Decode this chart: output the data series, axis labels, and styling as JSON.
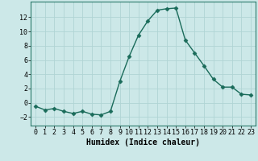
{
  "x": [
    0,
    1,
    2,
    3,
    4,
    5,
    6,
    7,
    8,
    9,
    10,
    11,
    12,
    13,
    14,
    15,
    16,
    17,
    18,
    19,
    20,
    21,
    22,
    23
  ],
  "y": [
    -0.5,
    -1.0,
    -0.8,
    -1.2,
    -1.5,
    -1.2,
    -1.6,
    -1.7,
    -1.2,
    3.0,
    6.5,
    9.5,
    11.5,
    13.0,
    13.2,
    13.3,
    8.8,
    7.0,
    5.2,
    3.3,
    2.2,
    2.2,
    1.2,
    1.1
  ],
  "line_color": "#1a6b5a",
  "marker": "D",
  "marker_size": 2.5,
  "bg_color": "#cce8e8",
  "grid_color": "#b0d4d4",
  "xlabel": "Humidex (Indice chaleur)",
  "ylabel": "",
  "xlim": [
    -0.5,
    23.5
  ],
  "ylim": [
    -3.2,
    14.2
  ],
  "yticks": [
    -2,
    0,
    2,
    4,
    6,
    8,
    10,
    12
  ],
  "xticks": [
    0,
    1,
    2,
    3,
    4,
    5,
    6,
    7,
    8,
    9,
    10,
    11,
    12,
    13,
    14,
    15,
    16,
    17,
    18,
    19,
    20,
    21,
    22,
    23
  ],
  "xlabel_fontsize": 7.0,
  "tick_fontsize": 6.0,
  "line_width": 1.0
}
